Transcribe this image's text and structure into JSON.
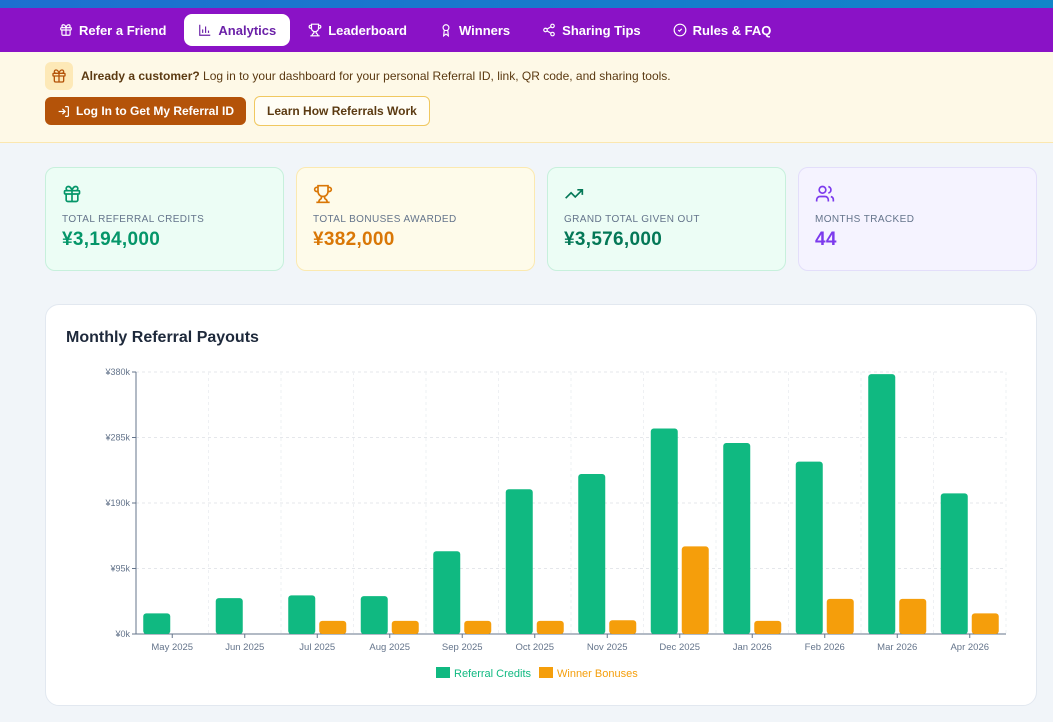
{
  "nav": {
    "items": [
      {
        "label": "Refer a Friend",
        "icon": "gift-icon",
        "active": false
      },
      {
        "label": "Analytics",
        "icon": "bar-chart-icon",
        "active": true
      },
      {
        "label": "Leaderboard",
        "icon": "trophy-icon",
        "active": false
      },
      {
        "label": "Winners",
        "icon": "medal-icon",
        "active": false
      },
      {
        "label": "Sharing Tips",
        "icon": "share-icon",
        "active": false
      },
      {
        "label": "Rules & FAQ",
        "icon": "check-circle-icon",
        "active": false
      }
    ]
  },
  "banner": {
    "bold_text": "Already a customer?",
    "text": " Log in to your dashboard for your personal Referral ID, link, QR code, and sharing tools.",
    "login_button": "Log In to Get My Referral ID",
    "learn_button": "Learn How Referrals Work"
  },
  "stats": [
    {
      "label": "Total Referral Credits",
      "value": "¥3,194,000",
      "icon": "gift-icon",
      "color": "#059669"
    },
    {
      "label": "Total Bonuses Awarded",
      "value": "¥382,000",
      "icon": "trophy-icon",
      "color": "#d97706"
    },
    {
      "label": "Grand Total Given Out",
      "value": "¥3,576,000",
      "icon": "trending-up-icon",
      "color": "#047857"
    },
    {
      "label": "Months Tracked",
      "value": "44",
      "icon": "users-icon",
      "color": "#7c3aed"
    }
  ],
  "chart_title": "Monthly Referral Payouts",
  "chart_data": {
    "type": "bar",
    "categories": [
      "May 2025",
      "Jun 2025",
      "Jul 2025",
      "Aug 2025",
      "Sep 2025",
      "Oct 2025",
      "Nov 2025",
      "Dec 2025",
      "Jan 2026",
      "Feb 2026",
      "Mar 2026",
      "Apr 2026"
    ],
    "series": [
      {
        "name": "Referral Credits",
        "color": "#10b981",
        "values": [
          30000,
          52000,
          56000,
          55000,
          120000,
          210000,
          232000,
          298000,
          277000,
          250000,
          377000,
          204000
        ]
      },
      {
        "name": "Winner Bonuses",
        "color": "#f59e0b",
        "values": [
          0,
          0,
          19000,
          19000,
          19000,
          19000,
          20000,
          127000,
          19000,
          51000,
          51000,
          30000
        ]
      }
    ],
    "ylim": [
      0,
      380000
    ],
    "yticks": [
      "¥0k",
      "¥95k",
      "¥190k",
      "¥285k",
      "¥380k"
    ],
    "grid": true,
    "legend": "bottom-center"
  }
}
